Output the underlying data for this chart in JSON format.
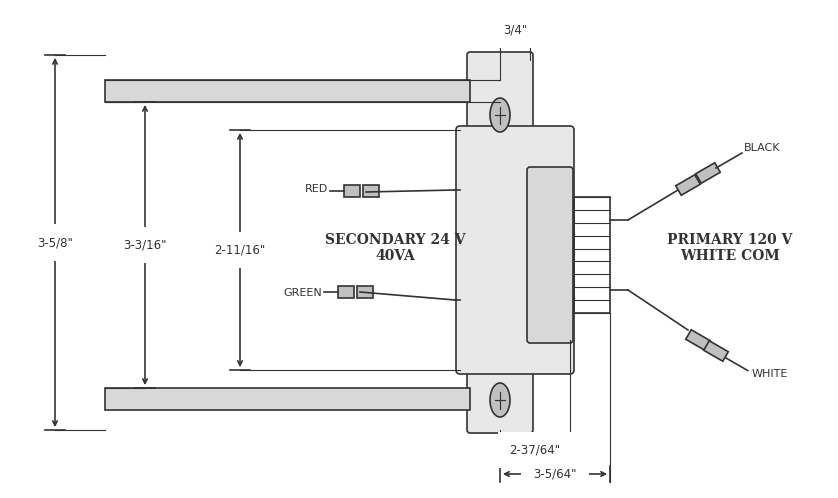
{
  "bg_color": "#ffffff",
  "line_color": "#333333",
  "lw": 1.2,
  "secondary_label": "SECONDARY 24 V\n40VA",
  "primary_label": "PRIMARY 120 V\nWHITE COM",
  "dim_3_5_8": "3-5/8\"",
  "dim_3_3_16": "3-3/16\"",
  "dim_2_11_16": "2-11/16\"",
  "dim_3_4": "3/4\"",
  "dim_2_37_64": "2-37/64\"",
  "dim_3_5_64": "3-5/64\""
}
